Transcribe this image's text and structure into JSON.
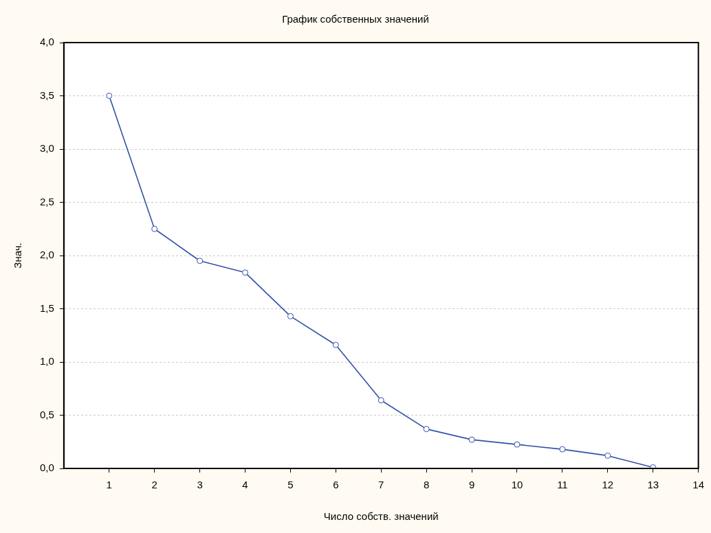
{
  "chart_data": {
    "type": "line",
    "title": "График собственных значений",
    "xlabel": "Число собств. значений",
    "ylabel": "Знач.",
    "x": [
      1,
      2,
      3,
      4,
      5,
      6,
      7,
      8,
      9,
      10,
      11,
      12,
      13
    ],
    "series": [
      {
        "color": "#3350a8",
        "values": [
          3.5,
          2.25,
          1.95,
          1.84,
          1.43,
          1.16,
          0.64,
          0.37,
          0.27,
          0.225,
          0.18,
          0.12,
          0.01
        ]
      }
    ],
    "xlim": [
      0,
      14
    ],
    "xticks": [
      1,
      2,
      3,
      4,
      5,
      6,
      7,
      8,
      9,
      10,
      11,
      12,
      13,
      14
    ],
    "ylim": [
      0,
      4
    ],
    "yticks": [
      {
        "value": 0,
        "label": "0,0"
      },
      {
        "value": 0.5,
        "label": "0,5"
      },
      {
        "value": 1,
        "label": "1,0"
      },
      {
        "value": 1.5,
        "label": "1,5"
      },
      {
        "value": 2,
        "label": "2,0"
      },
      {
        "value": 2.5,
        "label": "2,5"
      },
      {
        "value": 3,
        "label": "3,0"
      },
      {
        "value": 3.5,
        "label": "3,5"
      },
      {
        "value": 4,
        "label": "4,0"
      }
    ],
    "grid": "y",
    "legend": false,
    "marker": "circle",
    "line_style": "solid"
  }
}
